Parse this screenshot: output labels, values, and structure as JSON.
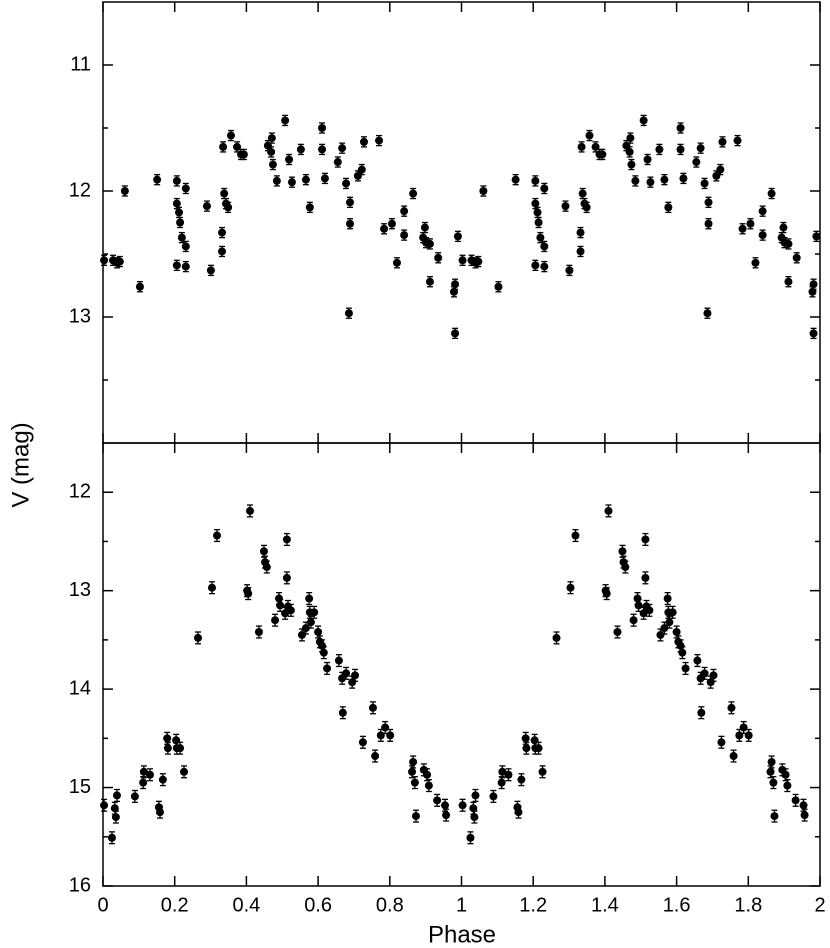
{
  "chart_data": [
    {
      "type": "scatter",
      "ylabel": "V (mag)",
      "color": "#000000",
      "y_inverted": true,
      "xlim": [
        0,
        2
      ],
      "xticks": [
        0,
        0.2,
        0.4,
        0.6,
        0.8,
        1,
        1.2,
        1.4,
        1.6,
        1.8,
        2
      ],
      "ylim": [
        10.5,
        14
      ],
      "yticks": [
        11,
        12,
        13
      ],
      "yminorticks": [
        11.5,
        12.5,
        13.5
      ],
      "yerr": 0.04,
      "x": [
        0.003,
        0.028,
        0.039,
        0.047,
        0.061,
        0.103,
        0.151,
        0.206,
        0.206,
        0.206,
        0.212,
        0.215,
        0.22,
        0.231,
        0.231,
        0.231,
        0.29,
        0.301,
        0.332,
        0.332,
        0.335,
        0.338,
        0.343,
        0.349,
        0.357,
        0.374,
        0.385,
        0.393,
        0.46,
        0.469,
        0.471,
        0.474,
        0.485,
        0.508,
        0.519,
        0.527,
        0.552,
        0.566,
        0.577,
        0.611,
        0.611,
        0.619,
        0.655,
        0.667,
        0.678,
        0.686,
        0.689,
        0.689,
        0.711,
        0.722,
        0.728,
        0.77,
        0.784,
        0.806,
        0.82,
        0.84,
        0.84,
        0.865,
        0.893,
        0.898,
        0.901,
        0.912,
        0.912,
        0.935,
        0.979,
        0.982,
        0.982,
        0.99,
        1.003,
        1.028,
        1.039,
        1.047,
        1.061,
        1.103,
        1.151,
        1.206,
        1.206,
        1.206,
        1.212,
        1.215,
        1.22,
        1.231,
        1.231,
        1.231,
        1.29,
        1.301,
        1.332,
        1.332,
        1.335,
        1.338,
        1.343,
        1.349,
        1.357,
        1.374,
        1.385,
        1.393,
        1.46,
        1.469,
        1.471,
        1.474,
        1.485,
        1.508,
        1.519,
        1.527,
        1.552,
        1.566,
        1.577,
        1.611,
        1.611,
        1.619,
        1.655,
        1.667,
        1.678,
        1.686,
        1.689,
        1.689,
        1.711,
        1.722,
        1.728,
        1.77,
        1.784,
        1.806,
        1.82,
        1.84,
        1.84,
        1.865,
        1.893,
        1.898,
        1.901,
        1.912,
        1.912,
        1.935,
        1.979,
        1.982,
        1.982,
        1.99
      ],
      "values": [
        12.55,
        12.55,
        12.57,
        12.56,
        12,
        12.76,
        11.91,
        11.92,
        12.1,
        12.59,
        12.17,
        12.25,
        12.37,
        11.98,
        12.44,
        12.6,
        12.12,
        12.63,
        12.33,
        12.48,
        11.65,
        12.02,
        12.1,
        12.13,
        11.56,
        11.65,
        11.71,
        11.71,
        11.64,
        11.69,
        11.58,
        11.79,
        11.92,
        11.44,
        11.75,
        11.93,
        11.67,
        11.91,
        12.13,
        11.5,
        11.67,
        11.9,
        11.77,
        11.66,
        11.94,
        12.97,
        12.26,
        12.09,
        11.88,
        11.83,
        11.61,
        11.6,
        12.3,
        12.26,
        12.57,
        12.16,
        12.35,
        12.02,
        12.37,
        12.29,
        12.41,
        12.42,
        12.72,
        12.53,
        12.8,
        12.74,
        13.13,
        12.36,
        12.55,
        12.55,
        12.57,
        12.56,
        12,
        12.76,
        11.91,
        11.92,
        12.1,
        12.59,
        12.17,
        12.25,
        12.37,
        11.98,
        12.44,
        12.6,
        12.12,
        12.63,
        12.33,
        12.48,
        11.65,
        12.02,
        12.1,
        12.13,
        11.56,
        11.65,
        11.71,
        11.71,
        11.64,
        11.69,
        11.58,
        11.79,
        11.92,
        11.44,
        11.75,
        11.93,
        11.67,
        11.91,
        12.13,
        11.5,
        11.67,
        11.9,
        11.77,
        11.66,
        11.94,
        12.97,
        12.26,
        12.09,
        11.88,
        11.83,
        11.61,
        11.6,
        12.3,
        12.26,
        12.57,
        12.16,
        12.35,
        12.02,
        12.37,
        12.29,
        12.41,
        12.42,
        12.72,
        12.53,
        12.8,
        12.74,
        13.13,
        12.36
      ]
    },
    {
      "type": "scatter",
      "xlabel": "Phase",
      "color": "#000000",
      "y_inverted": true,
      "xlim": [
        0,
        2
      ],
      "xticks": [
        0,
        0.2,
        0.4,
        0.6,
        0.8,
        1,
        1.2,
        1.4,
        1.6,
        1.8,
        2
      ],
      "ylim": [
        11.5,
        16
      ],
      "yticks": [
        12,
        13,
        14,
        15,
        16
      ],
      "yminorticks": [
        12.5,
        13.5,
        14.5,
        15.5
      ],
      "yerr": 0.06,
      "x": [
        0.003,
        0.025,
        0.033,
        0.036,
        0.039,
        0.089,
        0.112,
        0.114,
        0.131,
        0.156,
        0.159,
        0.167,
        0.179,
        0.181,
        0.204,
        0.206,
        0.215,
        0.226,
        0.265,
        0.304,
        0.318,
        0.402,
        0.405,
        0.41,
        0.435,
        0.449,
        0.452,
        0.457,
        0.48,
        0.491,
        0.494,
        0.508,
        0.513,
        0.513,
        0.516,
        0.524,
        0.555,
        0.566,
        0.575,
        0.577,
        0.58,
        0.589,
        0.6,
        0.605,
        0.611,
        0.616,
        0.625,
        0.658,
        0.667,
        0.669,
        0.678,
        0.695,
        0.703,
        0.725,
        0.753,
        0.759,
        0.775,
        0.787,
        0.801,
        0.862,
        0.865,
        0.87,
        0.873,
        0.895,
        0.904,
        0.909,
        0.932,
        0.954,
        0.957,
        1.003,
        1.025,
        1.033,
        1.036,
        1.039,
        1.089,
        1.112,
        1.114,
        1.131,
        1.156,
        1.159,
        1.167,
        1.179,
        1.181,
        1.204,
        1.206,
        1.215,
        1.226,
        1.265,
        1.304,
        1.318,
        1.402,
        1.405,
        1.41,
        1.435,
        1.449,
        1.452,
        1.457,
        1.48,
        1.491,
        1.494,
        1.508,
        1.513,
        1.513,
        1.516,
        1.524,
        1.555,
        1.566,
        1.575,
        1.577,
        1.58,
        1.589,
        1.6,
        1.605,
        1.611,
        1.616,
        1.625,
        1.658,
        1.667,
        1.669,
        1.678,
        1.695,
        1.703,
        1.725,
        1.753,
        1.759,
        1.775,
        1.787,
        1.801,
        1.862,
        1.865,
        1.87,
        1.873,
        1.895,
        1.904,
        1.909,
        1.932,
        1.954,
        1.957
      ],
      "values": [
        15.18,
        15.51,
        15.21,
        15.3,
        15.08,
        15.09,
        14.95,
        14.84,
        14.87,
        15.2,
        15.25,
        14.92,
        14.5,
        14.6,
        14.52,
        14.6,
        14.6,
        14.84,
        13.48,
        12.97,
        12.44,
        13,
        13.03,
        12.19,
        13.42,
        12.6,
        12.71,
        12.76,
        13.3,
        13.08,
        13.15,
        13.23,
        12.48,
        12.87,
        13.16,
        13.2,
        13.45,
        13.38,
        13.08,
        13.22,
        13.32,
        13.22,
        13.42,
        13.52,
        13.56,
        13.63,
        13.79,
        13.71,
        13.89,
        14.24,
        13.84,
        13.93,
        13.86,
        14.54,
        14.19,
        14.68,
        14.47,
        14.39,
        14.47,
        14.84,
        14.74,
        14.95,
        15.29,
        14.82,
        14.87,
        14.98,
        15.13,
        15.18,
        15.28,
        15.18,
        15.51,
        15.21,
        15.3,
        15.08,
        15.09,
        14.95,
        14.84,
        14.87,
        15.2,
        15.25,
        14.92,
        14.5,
        14.6,
        14.52,
        14.6,
        14.6,
        14.84,
        13.48,
        12.97,
        12.44,
        13,
        13.03,
        12.19,
        13.42,
        12.6,
        12.71,
        12.76,
        13.3,
        13.08,
        13.15,
        13.23,
        12.48,
        12.87,
        13.16,
        13.2,
        13.45,
        13.38,
        13.08,
        13.22,
        13.32,
        13.22,
        13.42,
        13.52,
        13.56,
        13.63,
        13.79,
        13.71,
        13.89,
        14.24,
        13.84,
        13.93,
        13.86,
        14.54,
        14.19,
        14.68,
        14.47,
        14.39,
        14.47,
        14.84,
        14.74,
        14.95,
        15.29,
        14.82,
        14.87,
        14.98,
        15.13,
        15.18,
        15.28
      ]
    }
  ]
}
